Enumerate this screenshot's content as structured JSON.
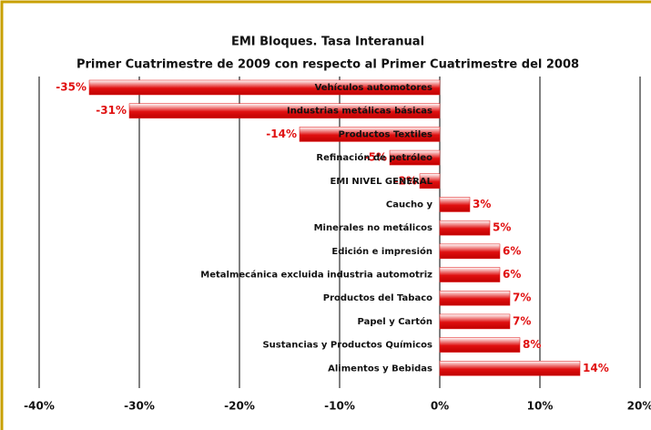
{
  "chart_data": {
    "type": "bar",
    "orientation": "horizontal",
    "title": "EMI Bloques. Tasa Interanual",
    "subtitle": "Primer Cuatrimestre de 2009 con respecto al Primer Cuatrimestre del 2008",
    "categories": [
      "Vehículos automotores",
      "Industrias metálicas básicas",
      "Productos Textiles",
      "Refinación de petróleo",
      "EMI NIVEL GENERAL",
      "Caucho y",
      "Minerales no metálicos",
      "Edición e impresión",
      "Metalmecánica excluida industria automotriz",
      "Productos del Tabaco",
      "Papel y Cartón",
      "Sustancias y Productos Químicos",
      "Alimentos y Bebidas"
    ],
    "values": [
      -35,
      -31,
      -14,
      -5,
      -2,
      3,
      5,
      6,
      6,
      7,
      7,
      8,
      14
    ],
    "value_labels": [
      "-35%",
      "-31%",
      "-14%",
      "-5%",
      "-2%",
      "3%",
      "5%",
      "6%",
      "6%",
      "7%",
      "7%",
      "8%",
      "14%"
    ],
    "color": "#e01010",
    "xlim": [
      -40,
      20
    ],
    "xticks": [
      {
        "value": -40,
        "label": "-40%"
      },
      {
        "value": -30,
        "label": "-30%"
      },
      {
        "value": -20,
        "label": "-20%"
      },
      {
        "value": -10,
        "label": "-10%"
      },
      {
        "value": 0,
        "label": "0%"
      },
      {
        "value": 10,
        "label": "10%"
      },
      {
        "value": 20,
        "label": "20%"
      }
    ],
    "grid": true
  }
}
